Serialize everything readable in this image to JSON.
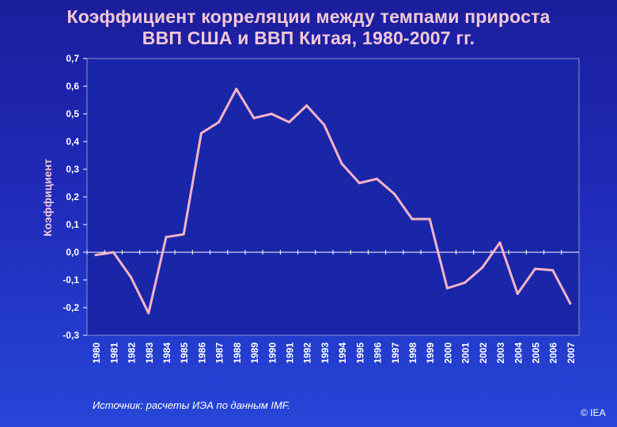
{
  "title": {
    "line1": "Коэффициент корреляции между темпами прироста",
    "line2": "ВВП США и ВВП Китая, 1980-2007 гг."
  },
  "source": "Источник: расчеты ИЭА по данным IMF.",
  "copyright": "© IEA",
  "colors": {
    "line": "#f8b4c8",
    "plot_background": "#1a26a8",
    "text": "#ffffff",
    "title": "#f4c8d8"
  },
  "chart_data": {
    "type": "line",
    "title": "Коэффициент корреляции между темпами прироста ВВП США и ВВП Китая, 1980-2007 гг.",
    "ylabel": "Коэффициент",
    "xlabel": "",
    "ylim": [
      -0.3,
      0.7
    ],
    "y_ticks": [
      0.7,
      0.6,
      0.5,
      0.4,
      0.3,
      0.2,
      0.1,
      0.0,
      -0.1,
      -0.2,
      -0.3
    ],
    "y_tick_labels": [
      "0,7",
      "0,6",
      "0,5",
      "0,4",
      "0,3",
      "0,2",
      "0,1",
      "0,0",
      "-0,1",
      "-0,2",
      "-0,3"
    ],
    "grid": false,
    "legend": "none",
    "categories": [
      "1980",
      "1981",
      "1982",
      "1983",
      "1984",
      "1985",
      "1986",
      "1987",
      "1988",
      "1989",
      "1990",
      "1991",
      "1992",
      "1993",
      "1994",
      "1995",
      "1996",
      "1997",
      "1998",
      "1999",
      "2000",
      "2001",
      "2002",
      "2003",
      "2004",
      "2005",
      "2006",
      "2007"
    ],
    "series": [
      {
        "values": [
          -0.01,
          0.0,
          -0.09,
          -0.22,
          0.055,
          0.065,
          0.43,
          0.47,
          0.59,
          0.485,
          0.5,
          0.47,
          0.53,
          0.46,
          0.32,
          0.25,
          0.265,
          0.21,
          0.12,
          0.12,
          -0.13,
          -0.11,
          -0.055,
          0.035,
          -0.15,
          -0.06,
          -0.065,
          -0.185
        ]
      }
    ]
  }
}
